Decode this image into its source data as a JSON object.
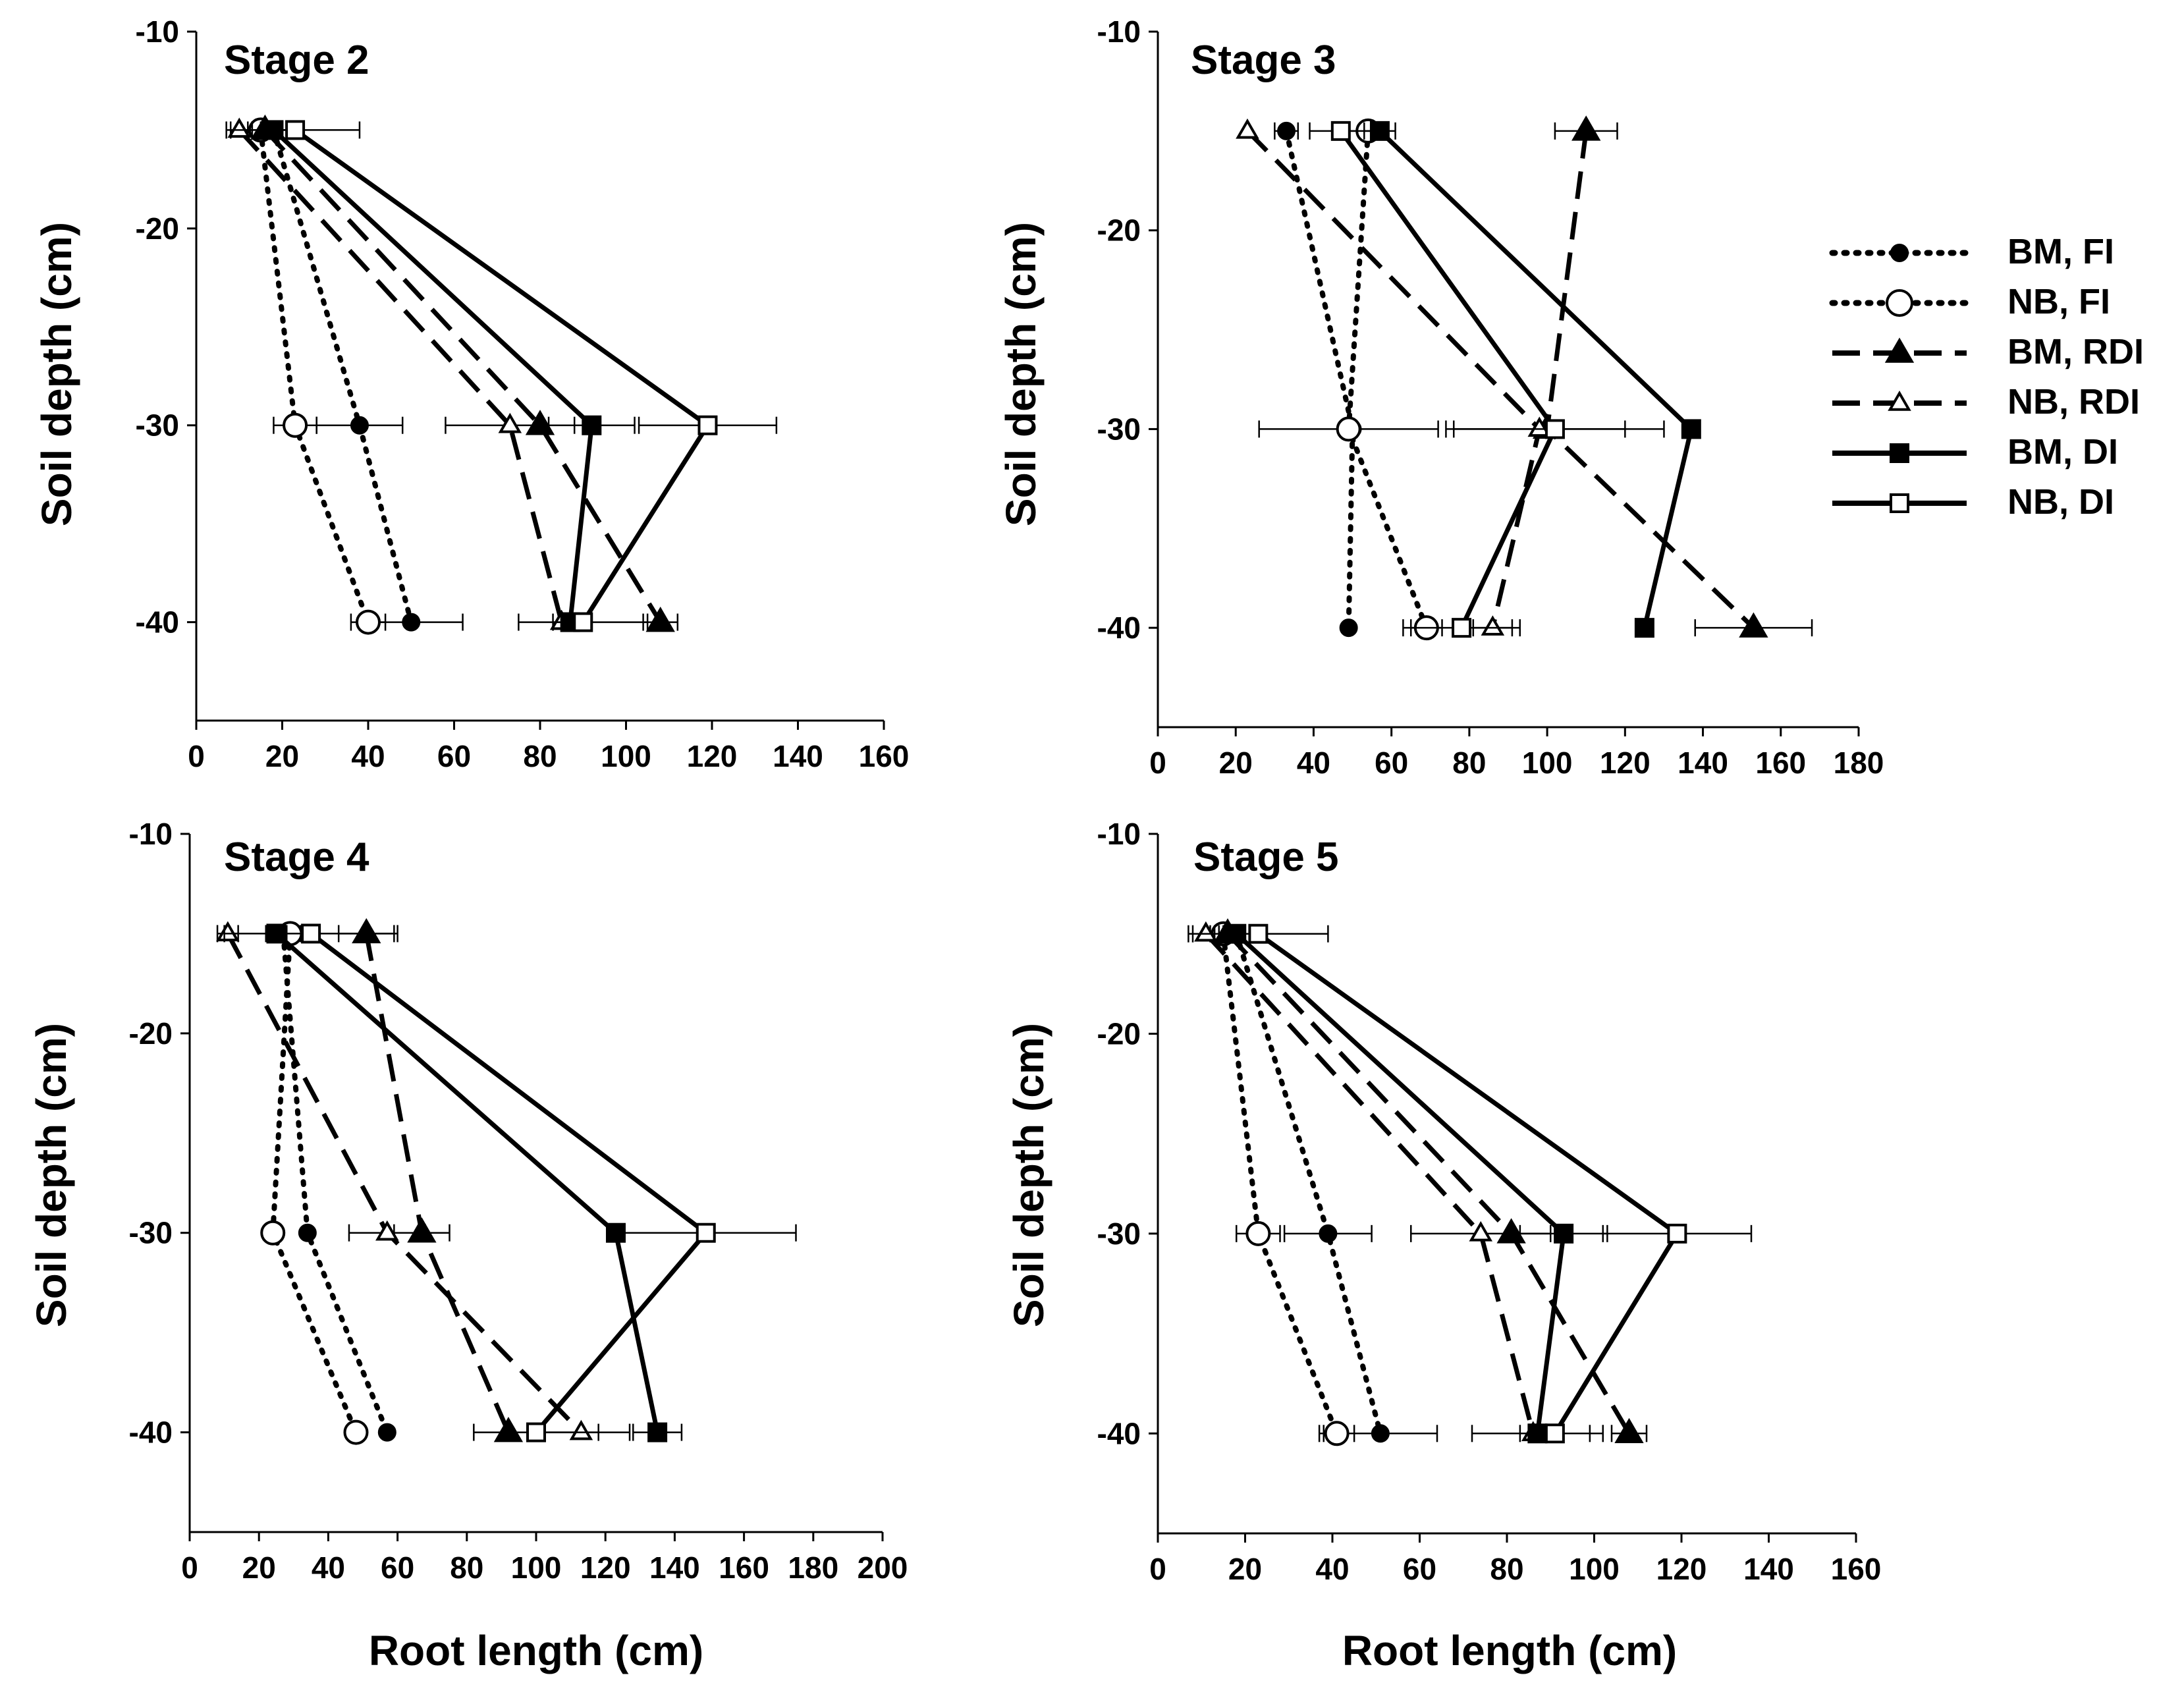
{
  "legend": [
    {
      "key": "bm_fi",
      "label": "BM, FI",
      "dash": "dot",
      "marker": "circle",
      "filled": true
    },
    {
      "key": "nb_fi",
      "label": "NB, FI",
      "dash": "dot",
      "marker": "circle",
      "filled": false
    },
    {
      "key": "bm_rdi",
      "label": "BM, RDI",
      "dash": "dash",
      "marker": "triangle",
      "filled": true
    },
    {
      "key": "nb_rdi",
      "label": "NB, RDI",
      "dash": "dash",
      "marker": "triangle",
      "filled": false
    },
    {
      "key": "bm_di",
      "label": "BM, DI",
      "dash": "solid",
      "marker": "square",
      "filled": true
    },
    {
      "key": "nb_di",
      "label": "NB, DI",
      "dash": "solid",
      "marker": "square",
      "filled": false
    }
  ],
  "chart_data": [
    {
      "type": "line",
      "title": "Stage 2",
      "xlabel": "Root length (cm)",
      "ylabel": "Soil depth (cm)",
      "xlim": [
        0,
        160
      ],
      "xticks": [
        0,
        20,
        40,
        60,
        80,
        100,
        120,
        140,
        160
      ],
      "ylim": [
        -45,
        -10
      ],
      "yticks": [
        -10,
        -20,
        -30,
        -40
      ],
      "depths": [
        -15,
        -30,
        -40
      ],
      "series": [
        {
          "key": "bm_fi",
          "name": "BM, FI",
          "values": [
            18,
            38,
            50
          ],
          "err": [
            3,
            10,
            12
          ]
        },
        {
          "key": "nb_fi",
          "name": "NB, FI",
          "values": [
            15,
            23,
            40
          ],
          "err": [
            3,
            5,
            4
          ]
        },
        {
          "key": "bm_rdi",
          "name": "BM, RDI",
          "values": [
            16,
            80,
            108
          ],
          "err": [
            3,
            0,
            4
          ]
        },
        {
          "key": "nb_rdi",
          "name": "NB, RDI",
          "values": [
            10,
            73,
            85
          ],
          "err": [
            3,
            15,
            0
          ]
        },
        {
          "key": "bm_di",
          "name": "BM, DI",
          "values": [
            18,
            92,
            87
          ],
          "err": [
            3,
            10,
            4
          ]
        },
        {
          "key": "nb_di",
          "name": "NB, DI",
          "values": [
            23,
            119,
            90
          ],
          "err": [
            15,
            16,
            15
          ]
        }
      ]
    },
    {
      "type": "line",
      "title": "Stage 3",
      "xlabel": "Root length (cm)",
      "ylabel": "Soil depth (cm)",
      "xlim": [
        0,
        180
      ],
      "xticks": [
        0,
        20,
        40,
        60,
        80,
        100,
        120,
        140,
        160,
        180
      ],
      "ylim": [
        -45,
        -10
      ],
      "yticks": [
        -10,
        -20,
        -30,
        -40
      ],
      "depths": [
        -15,
        -30,
        -40
      ],
      "series": [
        {
          "key": "bm_fi",
          "name": "BM, FI",
          "values": [
            33,
            50,
            49
          ],
          "err": [
            3,
            0,
            0
          ]
        },
        {
          "key": "nb_fi",
          "name": "NB, FI",
          "values": [
            54,
            49,
            69
          ],
          "err": [
            5,
            23,
            4
          ]
        },
        {
          "key": "bm_rdi",
          "name": "BM, RDI",
          "values": [
            110,
            100,
            153
          ],
          "err": [
            8,
            0,
            15
          ]
        },
        {
          "key": "nb_rdi",
          "name": "NB, RDI",
          "values": [
            23,
            98,
            86
          ],
          "err": [
            0,
            22,
            5
          ]
        },
        {
          "key": "bm_di",
          "name": "BM, DI",
          "values": [
            57,
            137,
            125
          ],
          "err": [
            4,
            0,
            0
          ]
        },
        {
          "key": "nb_di",
          "name": "NB, DI",
          "values": [
            47,
            102,
            78
          ],
          "err": [
            8,
            28,
            15
          ]
        }
      ]
    },
    {
      "type": "line",
      "title": "Stage 4",
      "xlabel": "Root length (cm)",
      "ylabel": "Soil depth (cm)",
      "xlim": [
        0,
        200
      ],
      "xticks": [
        0,
        20,
        40,
        60,
        80,
        100,
        120,
        140,
        160,
        180,
        200
      ],
      "ylim": [
        -45,
        -10
      ],
      "yticks": [
        -10,
        -20,
        -30,
        -40
      ],
      "depths": [
        -15,
        -30,
        -40
      ],
      "series": [
        {
          "key": "bm_fi",
          "name": "BM, FI",
          "values": [
            27,
            34,
            57
          ],
          "err": [
            3,
            0,
            0
          ]
        },
        {
          "key": "nb_fi",
          "name": "NB, FI",
          "values": [
            29,
            24,
            48
          ],
          "err": [
            3,
            0,
            0
          ]
        },
        {
          "key": "bm_rdi",
          "name": "BM, RDI",
          "values": [
            51,
            67,
            92
          ],
          "err": [
            8,
            8,
            0
          ]
        },
        {
          "key": "nb_rdi",
          "name": "NB, RDI",
          "values": [
            11,
            57,
            113
          ],
          "err": [
            3,
            11,
            14
          ]
        },
        {
          "key": "bm_di",
          "name": "BM, DI",
          "values": [
            25,
            123,
            135
          ],
          "err": [
            3,
            0,
            7
          ]
        },
        {
          "key": "nb_di",
          "name": "NB, DI",
          "values": [
            35,
            149,
            100
          ],
          "err": [
            25,
            26,
            18
          ]
        }
      ]
    },
    {
      "type": "line",
      "title": "Stage 5",
      "xlabel": "Root length (cm)",
      "ylabel": "Soil depth (cm)",
      "xlim": [
        0,
        160
      ],
      "xticks": [
        0,
        20,
        40,
        60,
        80,
        100,
        120,
        140,
        160
      ],
      "ylim": [
        -45,
        -10
      ],
      "yticks": [
        -10,
        -20,
        -30,
        -40
      ],
      "depths": [
        -15,
        -30,
        -40
      ],
      "series": [
        {
          "key": "bm_fi",
          "name": "BM, FI",
          "values": [
            18,
            39,
            51
          ],
          "err": [
            3,
            10,
            13
          ]
        },
        {
          "key": "nb_fi",
          "name": "NB, FI",
          "values": [
            15,
            23,
            41
          ],
          "err": [
            3,
            5,
            4
          ]
        },
        {
          "key": "bm_rdi",
          "name": "BM, RDI",
          "values": [
            16,
            81,
            108
          ],
          "err": [
            3,
            0,
            4
          ]
        },
        {
          "key": "nb_rdi",
          "name": "NB, RDI",
          "values": [
            11,
            74,
            86
          ],
          "err": [
            3,
            16,
            0
          ]
        },
        {
          "key": "bm_di",
          "name": "BM, DI",
          "values": [
            18,
            93,
            87
          ],
          "err": [
            3,
            10,
            15
          ]
        },
        {
          "key": "nb_di",
          "name": "NB, DI",
          "values": [
            23,
            119,
            91
          ],
          "err": [
            16,
            17,
            8
          ]
        }
      ]
    }
  ]
}
